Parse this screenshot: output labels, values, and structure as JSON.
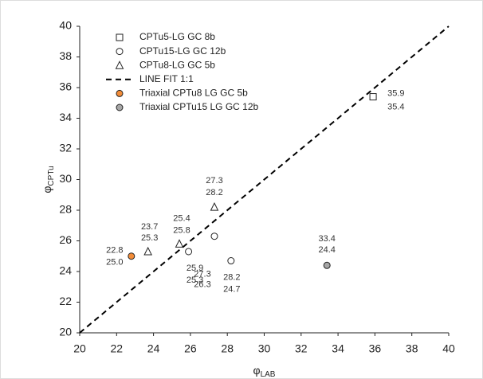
{
  "chart_data": {
    "type": "scatter",
    "x_label": {
      "text": "φ",
      "sub": "LAB"
    },
    "y_label": {
      "text": "φ",
      "sub": "CPTu"
    },
    "xlim": [
      20,
      40
    ],
    "xticks": [
      20,
      22,
      24,
      26,
      28,
      30,
      32,
      34,
      36,
      38,
      40
    ],
    "ylim": [
      20,
      40
    ],
    "yticks": [
      20,
      22,
      24,
      26,
      28,
      30,
      32,
      34,
      36,
      38,
      40
    ],
    "grid": false,
    "legend": "upper left",
    "series": [
      {
        "name": "CPTu5-LG GC 8b",
        "marker": "square",
        "color": "#ffffff",
        "x": [
          35.9
        ],
        "values": [
          35.4
        ],
        "value_labels": [
          "35.4"
        ]
      },
      {
        "name": "CPTu15-LG GC 12b",
        "marker": "circle",
        "color": "#ffffff",
        "x": [
          25.9,
          27.3,
          28.2
        ],
        "values": [
          25.3,
          26.3,
          24.7
        ],
        "value_labels": [
          "25.3",
          "26.3",
          "24.7"
        ]
      },
      {
        "name": "CPTu8-LG GC 5b",
        "marker": "triangle",
        "color": "#ffffff",
        "x": [
          23.7,
          25.4,
          27.3
        ],
        "values": [
          25.3,
          25.8,
          28.2
        ],
        "value_labels": [
          "25.3",
          "25.8",
          "28.2"
        ]
      },
      {
        "name": "LINE FIT 1:1",
        "marker": "dashed-line",
        "color": "#000000",
        "x": [
          20,
          40
        ],
        "values": [
          20,
          40
        ]
      },
      {
        "name": "Triaxial CPTu8 LG GC 5b",
        "marker": "circle",
        "color": "#f28c38",
        "x": [
          22.8
        ],
        "values": [
          25.0
        ],
        "value_labels": [
          "25.0"
        ]
      },
      {
        "name": "Triaxial CPTu15 LG GC 12b",
        "marker": "circle",
        "color": "#a6a6a6",
        "x": [
          33.4
        ],
        "values": [
          24.4
        ],
        "value_labels": [
          "24.4"
        ]
      }
    ]
  }
}
